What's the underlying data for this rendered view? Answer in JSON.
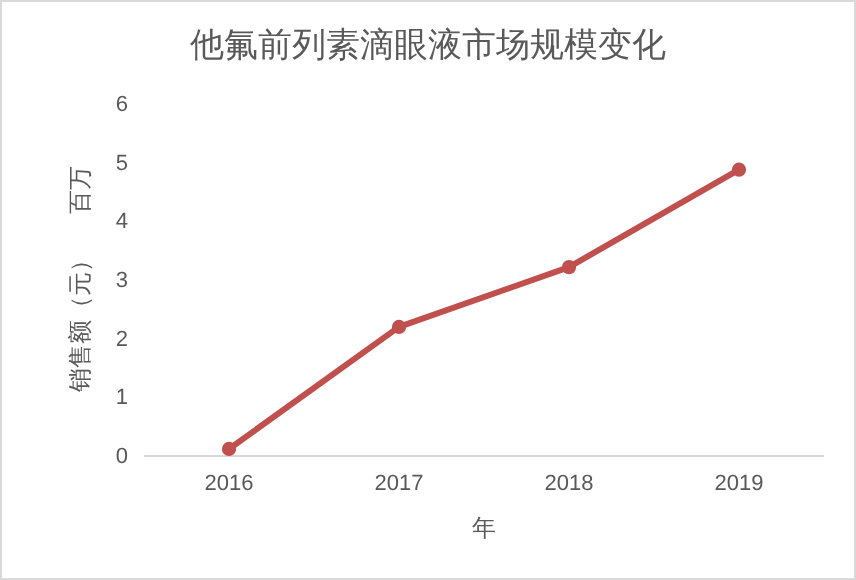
{
  "chart_data": {
    "type": "line",
    "title": "他氟前列素滴眼液市场规模变化",
    "xlabel": "年",
    "ylabel": "销售额（元）",
    "annotations": [
      "百万"
    ],
    "categories": [
      "2016",
      "2017",
      "2018",
      "2019"
    ],
    "series": [
      {
        "color": "#c0504d",
        "values": [
          0.12,
          2.2,
          3.22,
          4.88
        ]
      }
    ],
    "ylim": [
      0,
      6
    ],
    "yticks": [
      0,
      1,
      2,
      3,
      4,
      5,
      6
    ],
    "grid": false,
    "marker": "circle",
    "line_style": "solid"
  }
}
